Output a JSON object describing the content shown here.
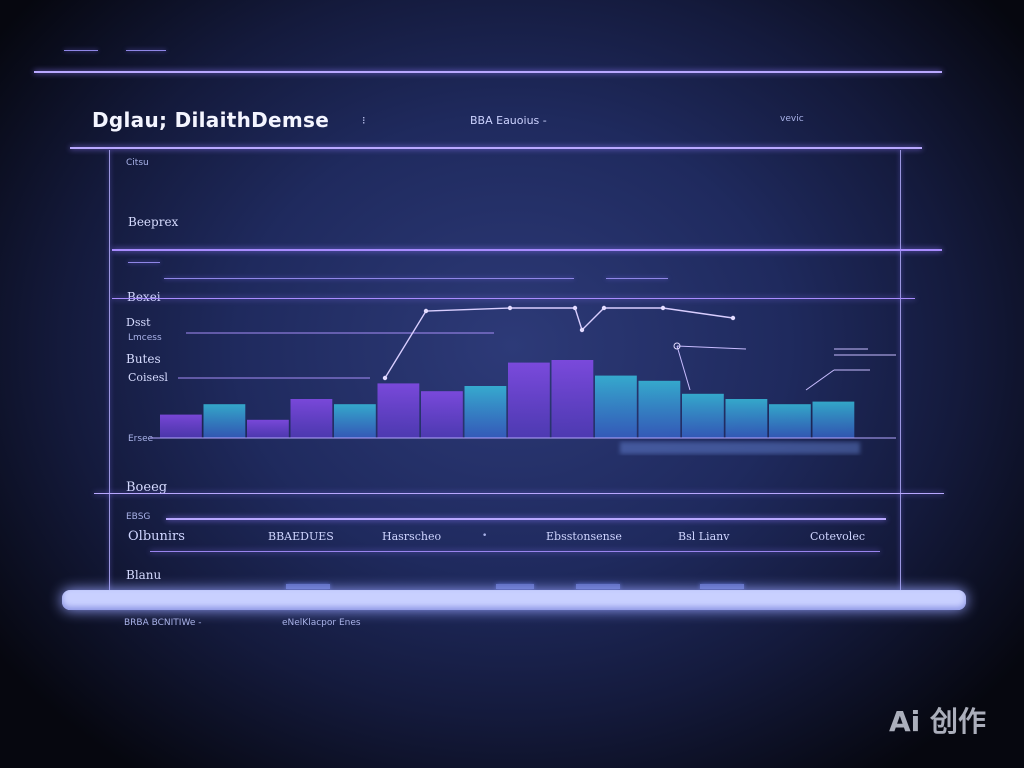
{
  "header": {
    "dash_marks": [
      "",
      ""
    ],
    "title": "Dglau; DilaithDemse",
    "title_marker": "⁝",
    "tab_center": "BBA  Eauoius -",
    "tab_right": "vevic"
  },
  "panel": {
    "corner_label": "Citsu",
    "section_label": "Beeprex",
    "subsection_label": "Bexei",
    "row_labels": [
      "Dsst",
      "Lmcess",
      "Butes",
      "Coisesl",
      "Ersee"
    ],
    "bottom_section": "Boeeg",
    "table_label": "EBSG",
    "columns": [
      "Olbunirs",
      "BBAEDUES",
      "Hasrscheo",
      "Ebsstonsense",
      "Bsl Lianv",
      "Cotevolec"
    ],
    "bottom_label": "Blanu"
  },
  "footer": {
    "left_text": "BRBA  BCNITIWe -",
    "center_text": "eNelKlacpor Enes"
  },
  "watermark": {
    "text": "Ai 创作"
  },
  "accent_colors": {
    "violet": "#8a4df0",
    "cyan": "#39c8e6",
    "line": "#b9a8ff",
    "scrollbar": "#c9d0ff"
  },
  "chart_data": {
    "type": "bar",
    "categories": [
      "",
      "",
      "",
      "",
      "",
      "",
      "",
      "",
      "",
      "",
      "",
      "",
      "",
      "",
      "",
      ""
    ],
    "series": [
      {
        "values": [
          18,
          26,
          14,
          30,
          26,
          42,
          36,
          40,
          58,
          60,
          48,
          44,
          34,
          30,
          26,
          28
        ]
      }
    ],
    "title": "",
    "xlabel": "",
    "ylabel": "",
    "ylim": [
      0,
      100
    ]
  }
}
